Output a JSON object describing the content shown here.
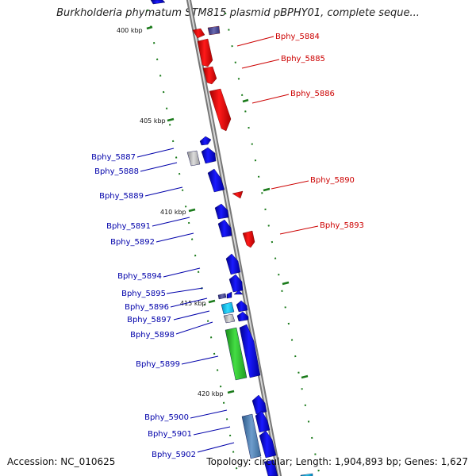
{
  "title": "Burkholderia phymatum STM815 plasmid pBPHY01, complete seque...",
  "footer": {
    "accession": "Accession: NC_010625",
    "summary": "Topology: circular; Length: 1,904,893 bp; Genes: 1,627"
  },
  "scale_labels": [
    "400 kbp",
    "405 kbp",
    "410 kbp",
    "415 kbp",
    "420 kbp"
  ],
  "genes_right": [
    "Bphy_5884",
    "Bphy_5885",
    "Bphy_5886",
    "Bphy_5890",
    "Bphy_5893"
  ],
  "genes_left": [
    "Bphy_5887",
    "Bphy_5888",
    "Bphy_5889",
    "Bphy_5891",
    "Bphy_5892",
    "Bphy_5894",
    "Bphy_5895",
    "Bphy_5896",
    "Bphy_5897",
    "Bphy_5898",
    "Bphy_5899",
    "Bphy_5900",
    "Bphy_5901",
    "Bphy_5902"
  ],
  "colors": {
    "right_label": "#cc0000",
    "left_label": "#0000aa",
    "backbone": "#888888",
    "tick": "#1a7a1a"
  }
}
